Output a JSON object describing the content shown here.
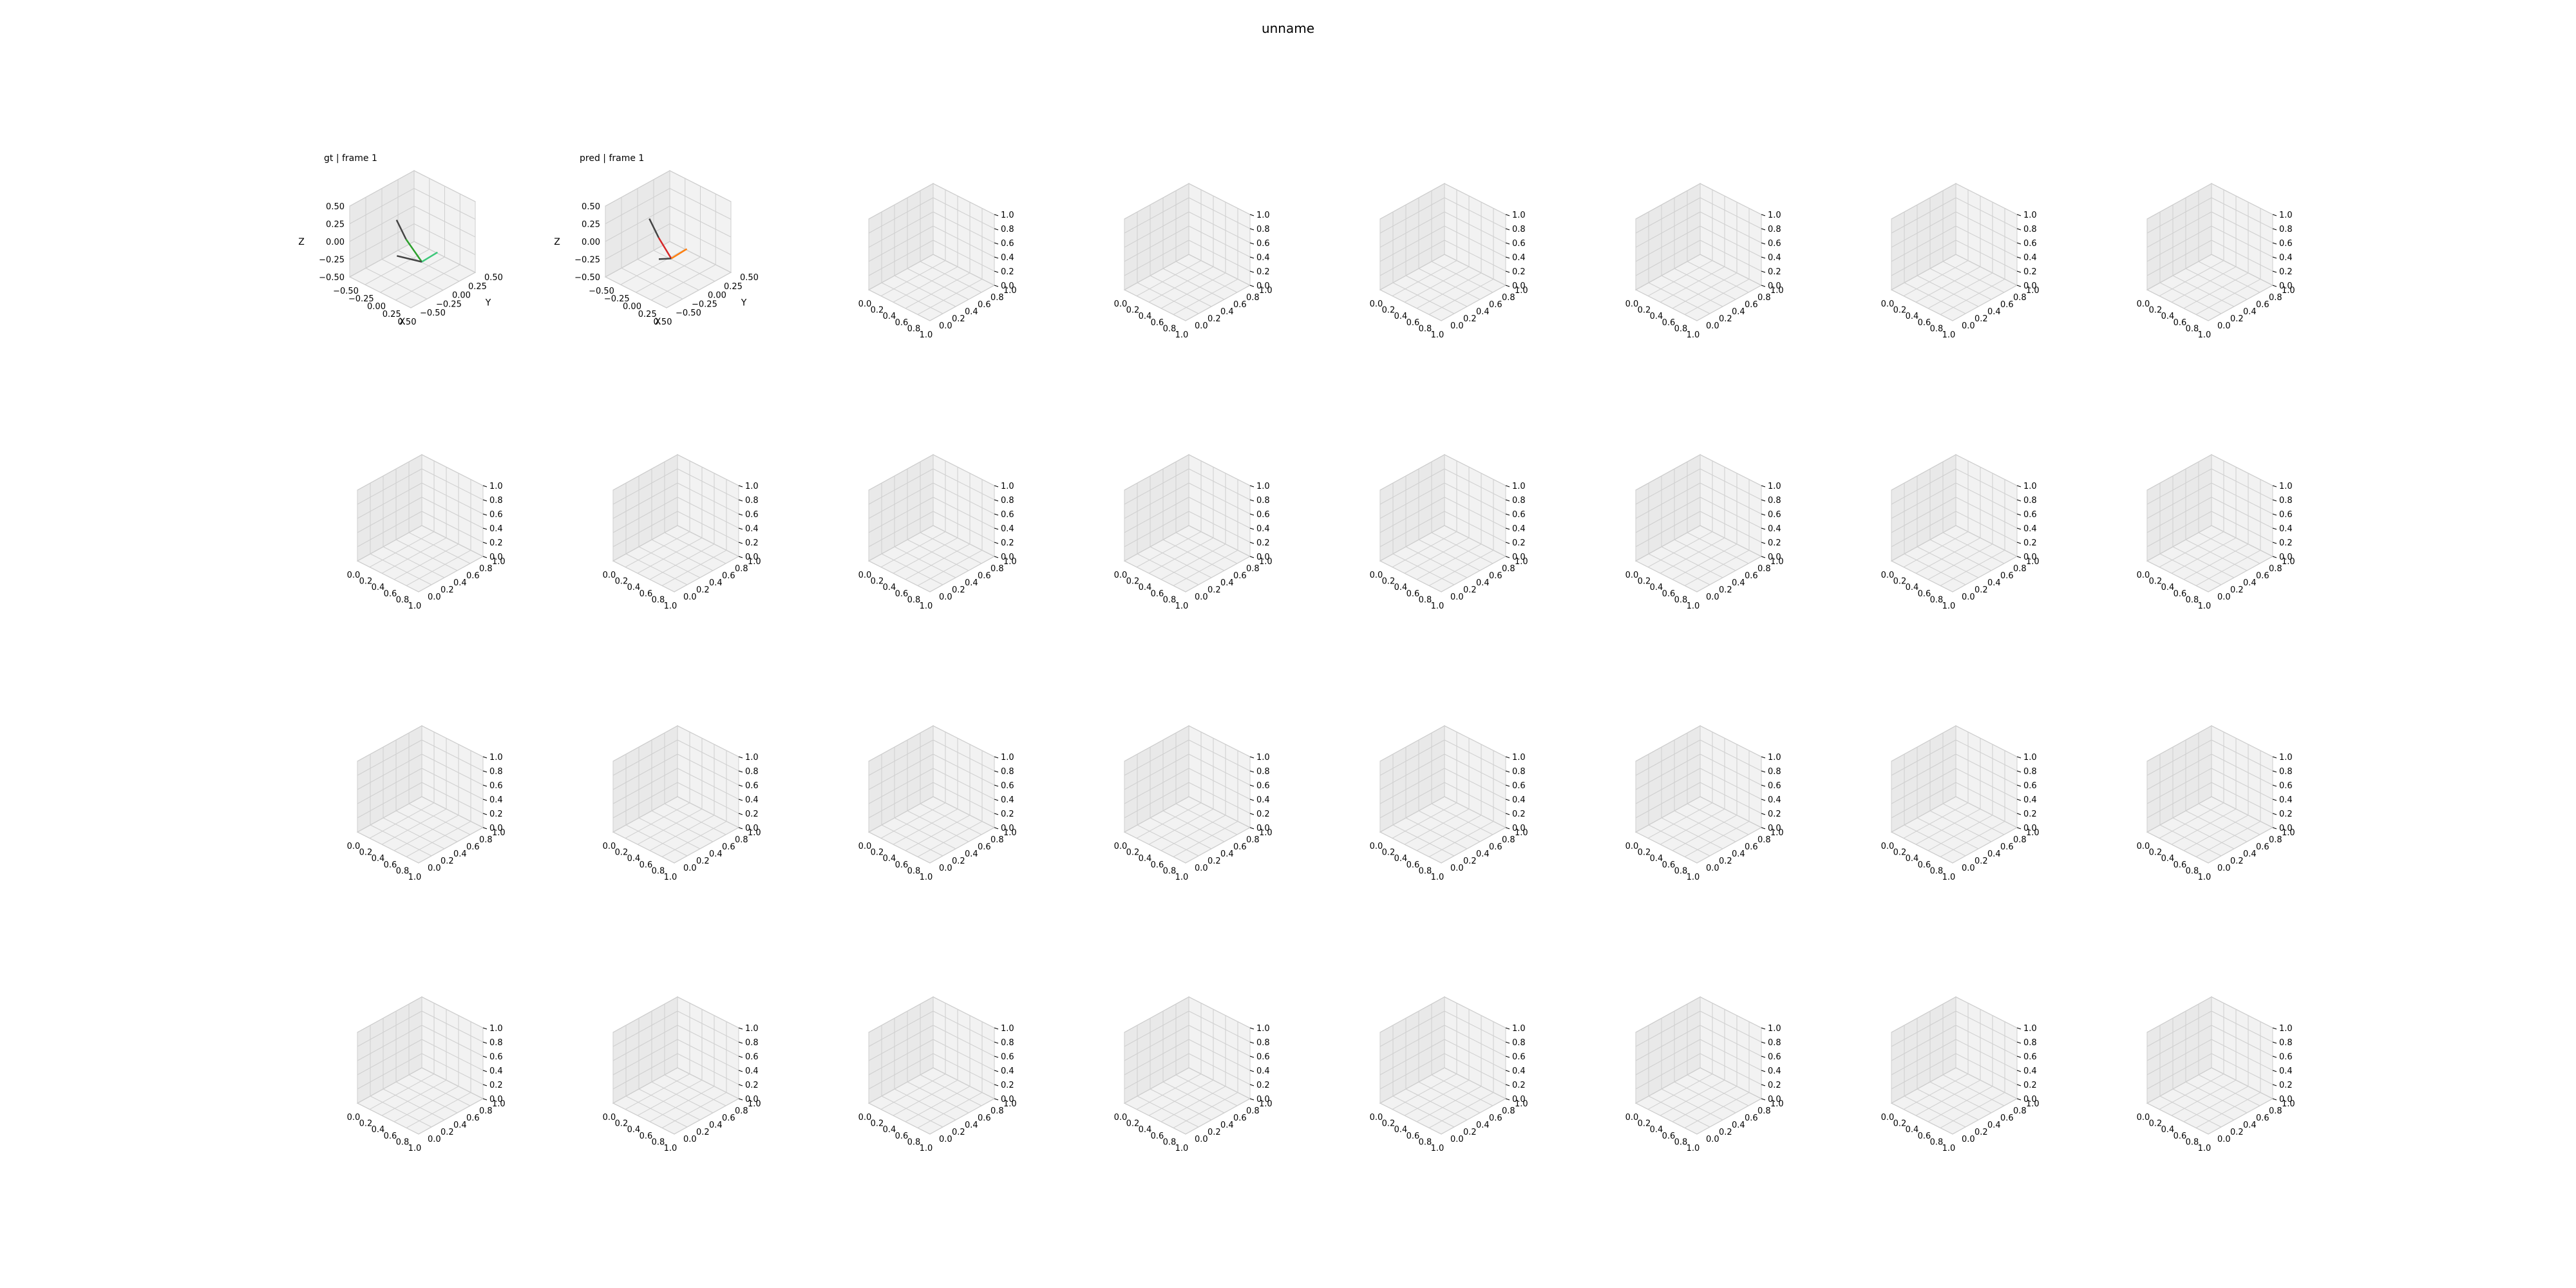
{
  "figure": {
    "title": "unname"
  },
  "colors": {
    "pane": "#f2f2f2",
    "pane_side": "#e9e9e9",
    "grid": "#cfcfcf",
    "edge": "#b0b0b0",
    "gt_line_a": "#2ca02c",
    "gt_line_b": "#3cc87a",
    "gt_line_c": "#444444",
    "pred_line_a": "#d62728",
    "pred_line_b": "#ff7f0e",
    "pred_line_c": "#444444"
  },
  "chart_data": {
    "type": "line3d",
    "rows": 4,
    "cols": 8,
    "default_ticks": [
      "0.0",
      "0.2",
      "0.4",
      "0.6",
      "0.8",
      "1.0"
    ],
    "scaled_ticks": [
      "−0.50",
      "−0.25",
      "0.00",
      "0.25",
      "0.50"
    ],
    "scaled_axis_labels": {
      "x": "X",
      "y": "Y",
      "z": "Z"
    },
    "subplots": [
      {
        "title": "gt | frame 1",
        "xlim": [
          -0.5,
          0.5
        ],
        "ylim": [
          -0.5,
          0.5
        ],
        "zlim": [
          -0.5,
          0.5
        ],
        "series": [
          {
            "color_key": "gt_line_c",
            "points": [
              [
                -0.05,
                -0.2,
                0.35
              ],
              [
                0.0,
                -0.1,
                0.05
              ]
            ]
          },
          {
            "color_key": "gt_line_a",
            "points": [
              [
                0.0,
                -0.1,
                0.05
              ],
              [
                0.1,
                0.05,
                -0.3
              ]
            ]
          },
          {
            "color_key": "gt_line_b",
            "points": [
              [
                0.1,
                0.05,
                -0.3
              ],
              [
                0.25,
                0.15,
                -0.15
              ]
            ]
          },
          {
            "color_key": "gt_line_c",
            "points": [
              [
                -0.15,
                -0.1,
                -0.25
              ],
              [
                0.1,
                0.05,
                -0.3
              ]
            ]
          }
        ]
      },
      {
        "title": "pred | frame 1",
        "xlim": [
          -0.5,
          0.5
        ],
        "ylim": [
          -0.5,
          0.5
        ],
        "zlim": [
          -0.5,
          0.5
        ],
        "series": [
          {
            "color_key": "pred_line_c",
            "points": [
              [
                -0.15,
                -0.15,
                0.3
              ],
              [
                -0.05,
                -0.1,
                0.05
              ]
            ]
          },
          {
            "color_key": "pred_line_a",
            "points": [
              [
                -0.05,
                -0.1,
                0.05
              ],
              [
                0.05,
                0.0,
                -0.25
              ]
            ]
          },
          {
            "color_key": "pred_line_b",
            "points": [
              [
                0.05,
                0.0,
                -0.25
              ],
              [
                0.2,
                0.1,
                -0.1
              ]
            ]
          },
          {
            "color_key": "pred_line_c",
            "points": [
              [
                -0.1,
                -0.05,
                -0.3
              ],
              [
                0.05,
                0.0,
                -0.25
              ]
            ]
          }
        ]
      }
    ]
  }
}
